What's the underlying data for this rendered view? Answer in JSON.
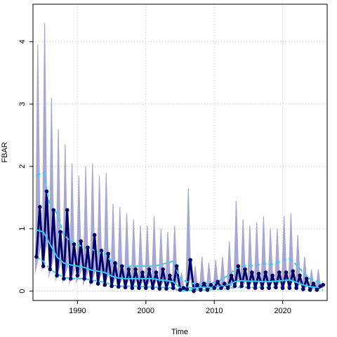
{
  "chart_data": {
    "type": "line",
    "title": "",
    "xlabel": "Time",
    "ylabel": "FBAR",
    "xlim": [
      1983.5,
      2026.5
    ],
    "ylim": [
      -0.15,
      4.6
    ],
    "x_ticks": [
      1990,
      2000,
      2010,
      2020
    ],
    "x_tick_labels": [
      "1990",
      "2000",
      "2010",
      "2020"
    ],
    "y_ticks": [
      0,
      1,
      2,
      3,
      4
    ],
    "y_tick_labels": [
      "0",
      "1",
      "2",
      "3",
      "4"
    ],
    "grid": true,
    "colors": {
      "band": "#8a8ac4",
      "median": "#000066",
      "smooth": "#33ccee"
    },
    "series": [
      {
        "style": "uncertainty-band",
        "x": [
          1984.2,
          1985.2,
          1986.2,
          1987.2,
          1988.2,
          1989.2,
          1990.2,
          1991.2,
          1992.2,
          1993.2,
          1994.2,
          1995.2,
          1996.2,
          1997.2,
          1998.2,
          1999.2,
          2000.2,
          2001.2,
          2002.2,
          2003.2,
          2004.2,
          2005.2,
          2006.2,
          2007.2,
          2008.2,
          2009.2,
          2010.2,
          2011.2,
          2012.2,
          2013.2,
          2014.2,
          2015.2,
          2016.2,
          2017.2,
          2018.2,
          2019.2,
          2020.2,
          2021.2,
          2022.2,
          2023.2,
          2024.2,
          2025.2
        ],
        "lower": [
          0.25,
          0.3,
          0.2,
          0.15,
          0.12,
          0.1,
          0.12,
          0.08,
          0.06,
          0.08,
          0.05,
          0.04,
          0.04,
          0.04,
          0.03,
          0.03,
          0.03,
          0.03,
          0.03,
          0.03,
          0.02,
          0.0,
          0.0,
          0.01,
          0.0,
          0.0,
          0.01,
          0.01,
          0.0,
          0.02,
          0.02,
          0.03,
          0.03,
          0.03,
          0.03,
          0.03,
          0.03,
          0.03,
          0.02,
          0.01,
          0.0,
          0.0
        ],
        "upper": [
          3.95,
          4.3,
          3.1,
          2.6,
          2.35,
          2.05,
          1.85,
          2.0,
          2.05,
          1.85,
          1.9,
          1.4,
          1.35,
          1.25,
          1.15,
          1.05,
          1.05,
          1.2,
          1.0,
          0.95,
          1.05,
          0.3,
          1.65,
          0.4,
          0.55,
          0.45,
          0.5,
          0.55,
          0.8,
          1.45,
          1.15,
          1.05,
          1.1,
          1.2,
          1.0,
          1.0,
          1.2,
          1.25,
          0.9,
          0.55,
          0.35,
          0.35
        ]
      },
      {
        "style": "median-seasonal",
        "x": [
          1984.0,
          1984.5,
          1985.0,
          1985.5,
          1986.0,
          1986.5,
          1987.0,
          1987.5,
          1988.0,
          1988.5,
          1989.0,
          1989.5,
          1990.0,
          1990.5,
          1991.0,
          1991.5,
          1992.0,
          1992.5,
          1993.0,
          1993.5,
          1994.0,
          1994.5,
          1995.0,
          1995.5,
          1996.0,
          1996.5,
          1997.0,
          1997.5,
          1998.0,
          1998.5,
          1999.0,
          1999.5,
          2000.0,
          2000.5,
          2001.0,
          2001.5,
          2002.0,
          2002.5,
          2003.0,
          2003.5,
          2004.0,
          2004.5,
          2005.0,
          2005.5,
          2006.0,
          2006.5,
          2007.0,
          2007.5,
          2008.0,
          2008.5,
          2009.0,
          2009.5,
          2010.0,
          2010.5,
          2011.0,
          2011.5,
          2012.0,
          2012.5,
          2013.0,
          2013.5,
          2014.0,
          2014.5,
          2015.0,
          2015.5,
          2016.0,
          2016.5,
          2017.0,
          2017.5,
          2018.0,
          2018.5,
          2019.0,
          2019.5,
          2020.0,
          2020.5,
          2021.0,
          2021.5,
          2022.0,
          2022.5,
          2023.0,
          2023.5,
          2024.0,
          2024.5,
          2025.0,
          2025.5,
          2025.9
        ],
        "y": [
          0.55,
          1.35,
          0.4,
          1.6,
          0.35,
          1.3,
          0.25,
          0.95,
          0.2,
          1.3,
          0.2,
          0.75,
          0.25,
          0.8,
          0.2,
          0.7,
          0.15,
          0.9,
          0.12,
          0.65,
          0.1,
          0.6,
          0.08,
          0.45,
          0.07,
          0.4,
          0.06,
          0.35,
          0.05,
          0.35,
          0.05,
          0.3,
          0.05,
          0.35,
          0.05,
          0.3,
          0.04,
          0.35,
          0.04,
          0.25,
          0.05,
          0.4,
          0.02,
          0.05,
          0.03,
          0.5,
          0.0,
          0.1,
          0.02,
          0.12,
          0.02,
          0.1,
          0.05,
          0.15,
          0.05,
          0.12,
          0.05,
          0.25,
          0.08,
          0.4,
          0.08,
          0.35,
          0.06,
          0.3,
          0.05,
          0.28,
          0.05,
          0.3,
          0.05,
          0.25,
          0.06,
          0.3,
          0.05,
          0.3,
          0.05,
          0.32,
          0.05,
          0.25,
          0.03,
          0.2,
          0.02,
          0.12,
          0.02,
          0.08,
          0.1
        ]
      },
      {
        "style": "smooth-mean",
        "x": [
          1984.0,
          1985.0,
          1986.0,
          1987.0,
          1988.0,
          1989.0,
          1990.0,
          1991.0,
          1992.0,
          1993.0,
          1994.0,
          1995.0,
          1996.0,
          1997.0,
          1998.0,
          1999.0,
          2000.0,
          2001.0,
          2002.0,
          2003.0,
          2004.0,
          2005.0,
          2006.0,
          2007.0,
          2008.0,
          2009.0,
          2010.0,
          2011.0,
          2012.0,
          2013.0,
          2014.0,
          2015.0,
          2016.0,
          2017.0,
          2018.0,
          2019.0,
          2020.0,
          2021.0,
          2022.0,
          2023.0,
          2024.0,
          2025.0,
          2025.9
        ],
        "y": [
          0.98,
          0.95,
          0.75,
          0.55,
          0.45,
          0.42,
          0.4,
          0.38,
          0.34,
          0.32,
          0.3,
          0.24,
          0.21,
          0.2,
          0.2,
          0.2,
          0.2,
          0.2,
          0.18,
          0.17,
          0.15,
          0.05,
          0.06,
          0.05,
          0.06,
          0.06,
          0.07,
          0.08,
          0.1,
          0.15,
          0.17,
          0.16,
          0.16,
          0.15,
          0.15,
          0.16,
          0.17,
          0.18,
          0.14,
          0.1,
          0.07,
          0.06,
          0.06
        ]
      },
      {
        "style": "upper-dashed",
        "x": [
          1984.0,
          1985.0,
          1986.0,
          1987.0,
          1988.0,
          1989.0,
          1990.0,
          1991.0,
          1992.0,
          1993.0,
          1994.0,
          1995.0,
          1996.0,
          1997.0,
          1998.0,
          1999.0,
          2000.0,
          2001.0,
          2002.0,
          2003.0,
          2004.0,
          2005.0,
          2006.0,
          2007.0,
          2008.0,
          2009.0,
          2010.0,
          2011.0,
          2012.0,
          2013.0,
          2014.0,
          2015.0,
          2016.0,
          2017.0,
          2018.0,
          2019.0,
          2020.0,
          2021.0,
          2022.0,
          2023.0,
          2024.0,
          2025.0,
          2025.9
        ],
        "y": [
          1.85,
          1.9,
          1.35,
          1.25,
          0.9,
          0.8,
          0.75,
          0.7,
          0.68,
          0.62,
          0.6,
          0.47,
          0.42,
          0.4,
          0.4,
          0.4,
          0.4,
          0.4,
          0.42,
          0.45,
          0.48,
          0.2,
          0.15,
          0.12,
          0.1,
          0.12,
          0.14,
          0.18,
          0.25,
          0.35,
          0.4,
          0.42,
          0.4,
          0.45,
          0.42,
          0.45,
          0.5,
          0.52,
          0.42,
          0.3,
          0.2,
          0.15,
          0.15
        ]
      },
      {
        "style": "lower-dashed",
        "x": [
          1984.0,
          1985.0,
          1986.0,
          1987.0,
          1988.0,
          1989.0,
          1990.0,
          1991.0,
          1992.0,
          1993.0,
          1994.0,
          1995.0,
          1996.0,
          1997.0,
          1998.0,
          1999.0,
          2000.0,
          2001.0,
          2002.0,
          2003.0,
          2004.0,
          2005.0,
          2006.0,
          2007.0,
          2008.0,
          2009.0,
          2010.0,
          2011.0,
          2012.0,
          2013.0,
          2014.0,
          2015.0,
          2016.0,
          2017.0,
          2018.0,
          2019.0,
          2020.0,
          2021.0,
          2022.0,
          2023.0,
          2024.0,
          2025.0,
          2025.9
        ],
        "y": [
          0.55,
          0.48,
          0.35,
          0.28,
          0.22,
          0.2,
          0.2,
          0.2,
          0.18,
          0.16,
          0.14,
          0.1,
          0.08,
          0.08,
          0.08,
          0.08,
          0.07,
          0.07,
          0.06,
          0.06,
          0.05,
          0.0,
          0.01,
          0.02,
          0.02,
          0.02,
          0.03,
          0.03,
          0.04,
          0.06,
          0.06,
          0.06,
          0.06,
          0.06,
          0.06,
          0.06,
          0.07,
          0.07,
          0.05,
          0.03,
          0.02,
          0.02,
          0.02
        ]
      }
    ]
  }
}
